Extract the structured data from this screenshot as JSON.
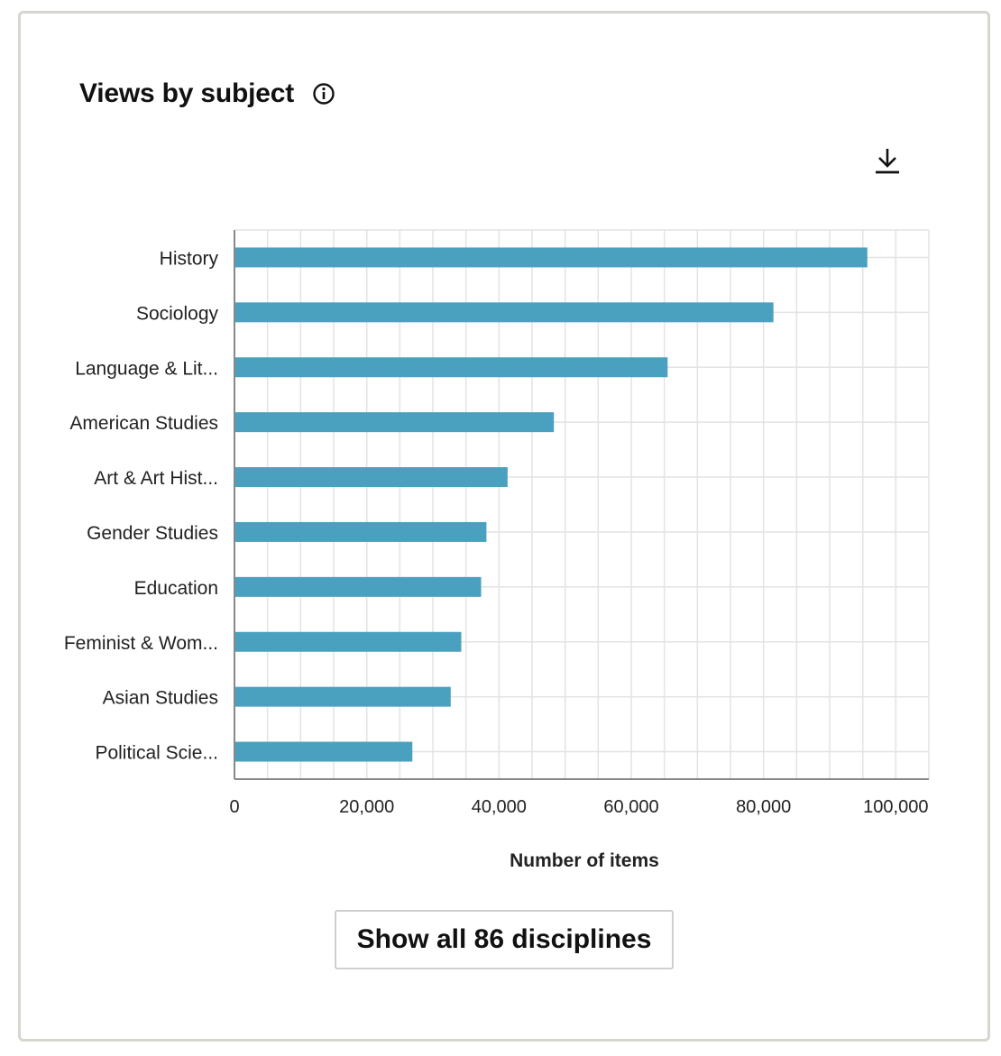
{
  "card": {
    "title": "Views by subject",
    "info_icon": "info-circle-icon",
    "download_icon": "download-icon",
    "show_all_label": "Show all 86 disciplines"
  },
  "colors": {
    "bar": "#4aa1bf",
    "grid": "#e3e3e3",
    "axis": "#888888",
    "border": "#d6d6cf"
  },
  "chart_data": {
    "type": "bar",
    "orientation": "horizontal",
    "title": "",
    "xlabel": "Number of items",
    "ylabel": "",
    "categories": [
      "History",
      "Sociology",
      "Language & Lit...",
      "American Studies",
      "Art & Art Hist...",
      "Gender Studies",
      "Education",
      "Feminist & Wom...",
      "Asian Studies",
      "Political Scie..."
    ],
    "values": [
      95700,
      81500,
      65500,
      48300,
      41300,
      38100,
      37300,
      34300,
      32700,
      26900
    ],
    "xlim": [
      0,
      105000
    ],
    "xticks": [
      0,
      20000,
      40000,
      60000,
      80000,
      100000
    ],
    "xtick_labels": [
      "0",
      "20,000",
      "40,000",
      "60,000",
      "80,000",
      "100,000"
    ],
    "minor_grid_step": 5000,
    "grid": true,
    "legend": "none"
  }
}
